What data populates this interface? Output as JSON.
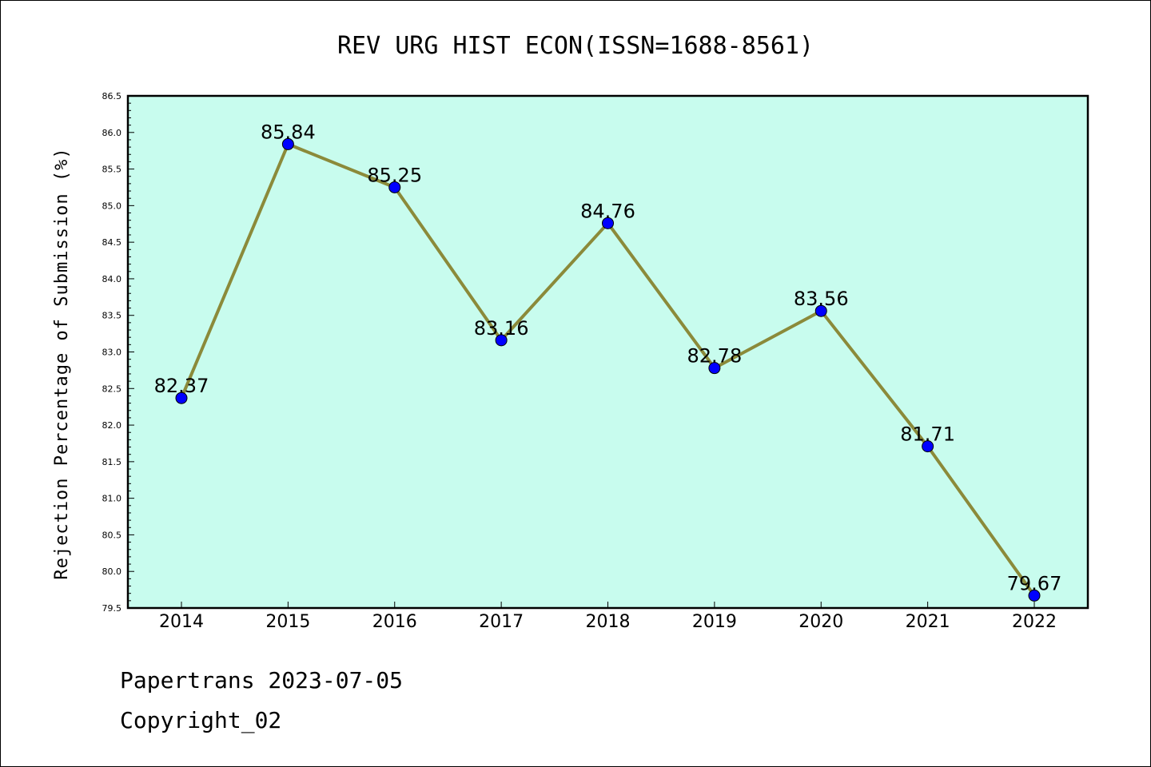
{
  "chart_data": {
    "type": "line",
    "title": "REV URG HIST ECON(ISSN=1688-8561)",
    "ylabel": "Rejection Percentage of Submission (%)",
    "xlabel": "",
    "categories": [
      "2014",
      "2015",
      "2016",
      "2017",
      "2018",
      "2019",
      "2020",
      "2021",
      "2022"
    ],
    "series": [
      {
        "values": [
          82.37,
          85.84,
          85.25,
          83.16,
          84.76,
          82.78,
          83.56,
          81.71,
          79.67
        ],
        "data_labels": [
          "82.37",
          "85.84",
          "85.25",
          "83.16",
          "84.76",
          "82.78",
          "83.56",
          "81.71",
          "79.67"
        ],
        "line_color": "#8b8a3a",
        "marker_color": "#0000ff"
      }
    ],
    "ylim": [
      79.5,
      86.5
    ],
    "yticks": [
      "79.5",
      "80.0",
      "80.5",
      "81.0",
      "81.5",
      "82.0",
      "82.5",
      "83.0",
      "83.5",
      "84.0",
      "84.5",
      "85.0",
      "85.5",
      "86.0",
      "86.5"
    ],
    "plot_background": "#c8fcee",
    "grid": false,
    "legend": "none"
  },
  "footer": {
    "line1": "Papertrans 2023-07-05",
    "line2": "Copyright_02"
  }
}
